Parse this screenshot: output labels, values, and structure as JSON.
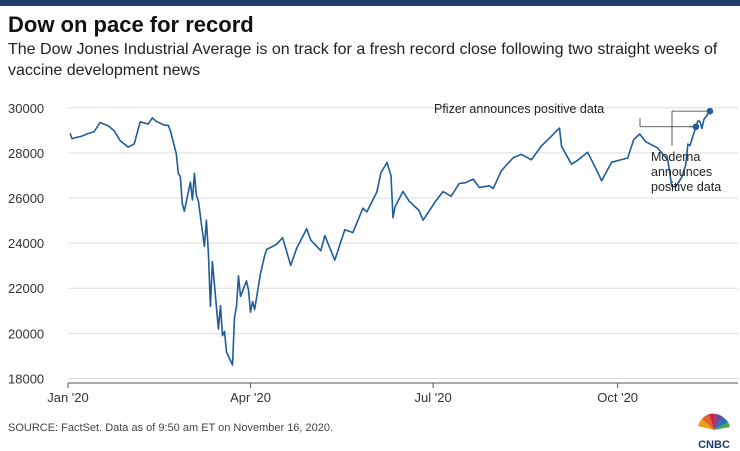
{
  "header": {
    "title": "Dow on pace for record",
    "subtitle": "The Dow Jones Industrial Average is on track for a fresh record close following two straight weeks of vaccine development news"
  },
  "footer": {
    "source": "SOURCE: FactSet. Data as of 9:50 am ET on November 16, 2020.",
    "logo_text": "CNBC"
  },
  "colors": {
    "line": "#1f5c99",
    "accent": "#1f3d6b"
  },
  "chart_data": {
    "type": "line",
    "title": "Dow on pace for record",
    "xlabel": "",
    "ylabel": "",
    "ylim": [
      17800,
      30300
    ],
    "xlim": [
      "2020-01-01",
      "2020-11-30"
    ],
    "grid": true,
    "yticks": [
      18000,
      20000,
      22000,
      24000,
      26000,
      28000,
      30000
    ],
    "ytick_labels": [
      "18000",
      "20000",
      "22000",
      "24000",
      "26000",
      "28000",
      "30000"
    ],
    "xticks": [
      "2020-01-01",
      "2020-04-01",
      "2020-07-01",
      "2020-10-01"
    ],
    "xtick_labels": [
      "Jan '20",
      "Apr '20",
      "Jul '20",
      "Oct '20"
    ],
    "series": [
      {
        "name": "",
        "x": [
          "2020-01-02",
          "2020-01-03",
          "2020-01-06",
          "2020-01-08",
          "2020-01-10",
          "2020-01-14",
          "2020-01-17",
          "2020-01-21",
          "2020-01-24",
          "2020-01-27",
          "2020-01-31",
          "2020-02-03",
          "2020-02-06",
          "2020-02-10",
          "2020-02-12",
          "2020-02-14",
          "2020-02-18",
          "2020-02-20",
          "2020-02-21",
          "2020-02-24",
          "2020-02-25",
          "2020-02-26",
          "2020-02-27",
          "2020-02-28",
          "2020-03-02",
          "2020-03-03",
          "2020-03-04",
          "2020-03-05",
          "2020-03-06",
          "2020-03-09",
          "2020-03-10",
          "2020-03-11",
          "2020-03-12",
          "2020-03-13",
          "2020-03-16",
          "2020-03-17",
          "2020-03-18",
          "2020-03-19",
          "2020-03-20",
          "2020-03-23",
          "2020-03-24",
          "2020-03-25",
          "2020-03-26",
          "2020-03-27",
          "2020-03-30",
          "2020-03-31",
          "2020-04-01",
          "2020-04-02",
          "2020-04-03",
          "2020-04-06",
          "2020-04-08",
          "2020-04-09",
          "2020-04-14",
          "2020-04-17",
          "2020-04-21",
          "2020-04-24",
          "2020-04-29",
          "2020-05-01",
          "2020-05-06",
          "2020-05-08",
          "2020-05-13",
          "2020-05-18",
          "2020-05-22",
          "2020-05-27",
          "2020-05-29",
          "2020-06-03",
          "2020-06-05",
          "2020-06-08",
          "2020-06-10",
          "2020-06-11",
          "2020-06-12",
          "2020-06-16",
          "2020-06-19",
          "2020-06-24",
          "2020-06-26",
          "2020-07-02",
          "2020-07-06",
          "2020-07-10",
          "2020-07-14",
          "2020-07-17",
          "2020-07-21",
          "2020-07-24",
          "2020-07-29",
          "2020-07-31",
          "2020-08-04",
          "2020-08-10",
          "2020-08-14",
          "2020-08-19",
          "2020-08-24",
          "2020-08-28",
          "2020-09-02",
          "2020-09-03",
          "2020-09-08",
          "2020-09-11",
          "2020-09-16",
          "2020-09-21",
          "2020-09-23",
          "2020-09-28",
          "2020-10-02",
          "2020-10-06",
          "2020-10-09",
          "2020-10-12",
          "2020-10-15",
          "2020-10-21",
          "2020-10-26",
          "2020-10-28",
          "2020-10-30",
          "2020-11-02",
          "2020-11-04",
          "2020-11-05",
          "2020-11-06",
          "2020-11-09",
          "2020-11-10",
          "2020-11-11",
          "2020-11-12",
          "2020-11-13",
          "2020-11-16"
        ],
        "values": [
          28868,
          28634,
          28703,
          28745,
          28824,
          28939,
          29348,
          29196,
          28989,
          28535,
          28256,
          28400,
          29379,
          29276,
          29551,
          29398,
          29232,
          29219,
          28992,
          27961,
          27081,
          26957,
          25766,
          25409,
          26703,
          25917,
          27091,
          26121,
          25864,
          23851,
          25018,
          23553,
          21200,
          23185,
          20189,
          21237,
          19899,
          20087,
          19174,
          18592,
          20704,
          21200,
          22552,
          21637,
          22327,
          21917,
          20943,
          21413,
          21053,
          22680,
          23434,
          23719,
          23950,
          24242,
          23019,
          23775,
          24634,
          24145,
          23665,
          24332,
          23248,
          24597,
          24465,
          25548,
          25383,
          26270,
          27111,
          27572,
          26990,
          25128,
          25605,
          26290,
          25871,
          25445,
          25016,
          25827,
          26287,
          26075,
          26643,
          26672,
          26840,
          26470,
          26540,
          26428,
          27201,
          27791,
          27931,
          27692,
          28308,
          28653,
          29100,
          28292,
          27500,
          27666,
          28032,
          27147,
          26763,
          27584,
          27682,
          27773,
          28587,
          28837,
          28494,
          28211,
          27685,
          26520,
          26501,
          26925,
          27480,
          28390,
          28323,
          29158,
          29420,
          29398,
          29080,
          29480,
          29850
        ]
      }
    ],
    "annotations": [
      {
        "text": "Pfizer announces positive data",
        "x": "2020-11-09",
        "y": 29158
      },
      {
        "text": "Moderna announces positive data",
        "x": "2020-11-16",
        "y": 29850,
        "lines": [
          "Moderna",
          "announces",
          "positive data"
        ]
      }
    ]
  }
}
